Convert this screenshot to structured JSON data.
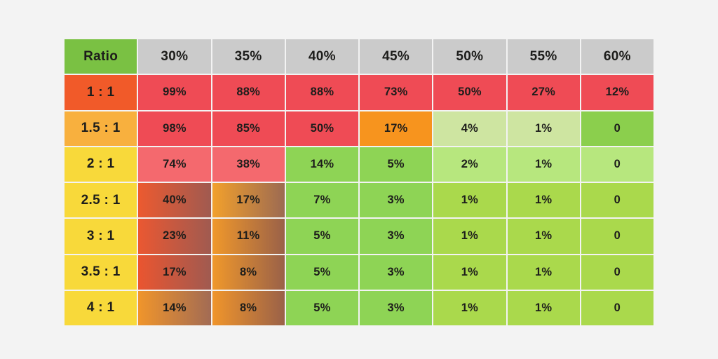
{
  "background_color": "#f3f3f3",
  "grid_line_color": "#ffffff",
  "text_color": "#1d1d1b",
  "table": {
    "corner_label": "Ratio",
    "header_colors": {
      "corner_bg": "#7ac143",
      "column_bg": "#cbcbcb"
    },
    "columns": [
      "30%",
      "35%",
      "40%",
      "45%",
      "50%",
      "55%",
      "60%"
    ],
    "rows": [
      {
        "label": "1 : 1",
        "label_bg": "#f15a29",
        "cells": [
          {
            "v": "99%",
            "bg": "#ef4b55"
          },
          {
            "v": "88%",
            "bg": "#ef4b55"
          },
          {
            "v": "88%",
            "bg": "#ef4b55"
          },
          {
            "v": "73%",
            "bg": "#ef4b55"
          },
          {
            "v": "50%",
            "bg": "#ef4b55"
          },
          {
            "v": "27%",
            "bg": "#ef4b55"
          },
          {
            "v": "12%",
            "bg": "#ef4b55"
          }
        ]
      },
      {
        "label": "1.5 : 1",
        "label_bg": "#f8b03e",
        "cells": [
          {
            "v": "98%",
            "bg": "#ef4b55"
          },
          {
            "v": "85%",
            "bg": "#ef4b55"
          },
          {
            "v": "50%",
            "bg": "#ef4b55"
          },
          {
            "v": "17%",
            "bg": "#f7941e"
          },
          {
            "v": "4%",
            "bg": "#cee5a1"
          },
          {
            "v": "1%",
            "bg": "#cee5a1"
          },
          {
            "v": "0",
            "bg": "#8bcf4d"
          }
        ]
      },
      {
        "label": "2 : 1",
        "label_bg": "#f8d93a",
        "cells": [
          {
            "v": "74%",
            "bg": "#f4696e"
          },
          {
            "v": "38%",
            "bg": "#f4696e"
          },
          {
            "v": "14%",
            "bg": "#8ed455"
          },
          {
            "v": "5%",
            "bg": "#8ed455"
          },
          {
            "v": "2%",
            "bg": "#b7e77e"
          },
          {
            "v": "1%",
            "bg": "#b7e77e"
          },
          {
            "v": "0",
            "bg": "#b7e77e"
          }
        ]
      },
      {
        "label": "2.5 : 1",
        "label_bg": "#f8d93a",
        "cells": [
          {
            "v": "40%",
            "bg": [
              "#ec5a30",
              "#a05a50"
            ]
          },
          {
            "v": "17%",
            "bg": [
              "#f2a02c",
              "#9c6a52"
            ]
          },
          {
            "v": "7%",
            "bg": "#8ed455"
          },
          {
            "v": "3%",
            "bg": "#8ed455"
          },
          {
            "v": "1%",
            "bg": "#aad94c"
          },
          {
            "v": "1%",
            "bg": "#aad94c"
          },
          {
            "v": "0",
            "bg": "#aad94c"
          }
        ]
      },
      {
        "label": "3 : 1",
        "label_bg": "#f8d93a",
        "cells": [
          {
            "v": "23%",
            "bg": [
              "#ea5832",
              "#a05a50"
            ]
          },
          {
            "v": "11%",
            "bg": [
              "#f0982b",
              "#9a6148"
            ]
          },
          {
            "v": "5%",
            "bg": "#8ed455"
          },
          {
            "v": "3%",
            "bg": "#8ed455"
          },
          {
            "v": "1%",
            "bg": "#aad94c"
          },
          {
            "v": "1%",
            "bg": "#aad94c"
          },
          {
            "v": "0",
            "bg": "#aad94c"
          }
        ]
      },
      {
        "label": "3.5 : 1",
        "label_bg": "#f8d93a",
        "cells": [
          {
            "v": "17%",
            "bg": [
              "#ea5530",
              "#a05a50"
            ]
          },
          {
            "v": "8%",
            "bg": [
              "#f0982b",
              "#9a6148"
            ]
          },
          {
            "v": "5%",
            "bg": "#8ed455"
          },
          {
            "v": "3%",
            "bg": "#8ed455"
          },
          {
            "v": "1%",
            "bg": "#aad94c"
          },
          {
            "v": "1%",
            "bg": "#aad94c"
          },
          {
            "v": "0",
            "bg": "#aad94c"
          }
        ]
      },
      {
        "label": "4 : 1",
        "label_bg": "#f8d93a",
        "cells": [
          {
            "v": "14%",
            "bg": [
              "#f0952b",
              "#a26b54"
            ]
          },
          {
            "v": "8%",
            "bg": [
              "#f0952b",
              "#9a6148"
            ]
          },
          {
            "v": "5%",
            "bg": "#8ed455"
          },
          {
            "v": "3%",
            "bg": "#8ed455"
          },
          {
            "v": "1%",
            "bg": "#aad94c"
          },
          {
            "v": "1%",
            "bg": "#aad94c"
          },
          {
            "v": "0",
            "bg": "#aad94c"
          }
        ]
      }
    ]
  },
  "chart_data": {
    "type": "heatmap",
    "corner_label": "Ratio",
    "x_categories": [
      "30%",
      "35%",
      "40%",
      "45%",
      "50%",
      "55%",
      "60%"
    ],
    "y_categories": [
      "1 : 1",
      "1.5 : 1",
      "2 : 1",
      "2.5 : 1",
      "3 : 1",
      "3.5 : 1",
      "4 : 1"
    ],
    "values": [
      [
        99,
        88,
        88,
        73,
        50,
        27,
        12
      ],
      [
        98,
        85,
        50,
        17,
        4,
        1,
        0
      ],
      [
        74,
        38,
        14,
        5,
        2,
        1,
        0
      ],
      [
        40,
        17,
        7,
        3,
        1,
        1,
        0
      ],
      [
        23,
        11,
        5,
        3,
        1,
        1,
        0
      ],
      [
        17,
        8,
        5,
        3,
        1,
        1,
        0
      ],
      [
        14,
        8,
        5,
        3,
        1,
        1,
        0
      ]
    ],
    "unit": "%",
    "color_scale": {
      "high": "#ef4b55",
      "mid": "#f7941e",
      "low": "#8ed455",
      "note": "red = high percentage, orange = medium, green = low; grid on (white 2px lines); no title, no legend"
    }
  }
}
